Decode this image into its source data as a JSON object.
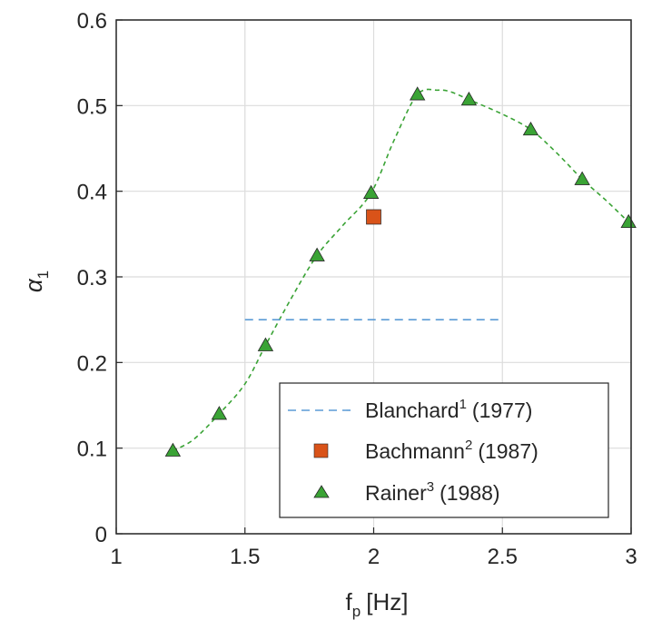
{
  "chart_data": {
    "type": "scatter",
    "xlabel": "f",
    "xlabel_sub": "p",
    "xlabel_unit": "[Hz]",
    "ylabel": "α",
    "ylabel_sub": "1",
    "xlim": [
      1,
      3
    ],
    "ylim": [
      0,
      0.6
    ],
    "x_ticks": [
      "1",
      "1.5",
      "2",
      "2.5",
      "3"
    ],
    "y_ticks": [
      "0",
      "0.1",
      "0.2",
      "0.3",
      "0.4",
      "0.5",
      "0.6"
    ],
    "x_tick_values": [
      1,
      1.5,
      2,
      2.5,
      3
    ],
    "y_tick_values": [
      0,
      0.1,
      0.2,
      0.3,
      0.4,
      0.5,
      0.6
    ],
    "grid": true,
    "legend_position": "bottom-right",
    "series": [
      {
        "name": "Blanchard",
        "superscript": "1",
        "year": "(1977)",
        "marker": "dashed-line",
        "color": "#5B9BD5",
        "x": [
          1.5,
          2.5
        ],
        "y": [
          0.25,
          0.25
        ]
      },
      {
        "name": "Bachmann",
        "superscript": "2",
        "year": "(1987)",
        "marker": "square",
        "color": "#D95319",
        "x": [
          2.0
        ],
        "y": [
          0.37
        ]
      },
      {
        "name": "Rainer",
        "superscript": "3",
        "year": "(1988)",
        "marker": "triangle",
        "color": "#3AA335",
        "x": [
          1.22,
          1.4,
          1.58,
          1.78,
          1.99,
          2.17,
          2.37,
          2.61,
          2.81,
          2.99
        ],
        "y": [
          0.097,
          0.14,
          0.22,
          0.325,
          0.398,
          0.513,
          0.507,
          0.472,
          0.414,
          0.364
        ]
      }
    ],
    "fit_curve": {
      "color": "#3AA335",
      "style": "dashed",
      "x": [
        1.22,
        1.3,
        1.4,
        1.5,
        1.58,
        1.68,
        1.78,
        1.88,
        1.99,
        2.08,
        2.17,
        2.25,
        2.3,
        2.37,
        2.5,
        2.61,
        2.71,
        2.81,
        2.9,
        2.99
      ],
      "y": [
        0.097,
        0.11,
        0.14,
        0.175,
        0.22,
        0.275,
        0.325,
        0.36,
        0.398,
        0.46,
        0.513,
        0.518,
        0.516,
        0.507,
        0.49,
        0.472,
        0.445,
        0.414,
        0.39,
        0.364
      ]
    }
  }
}
